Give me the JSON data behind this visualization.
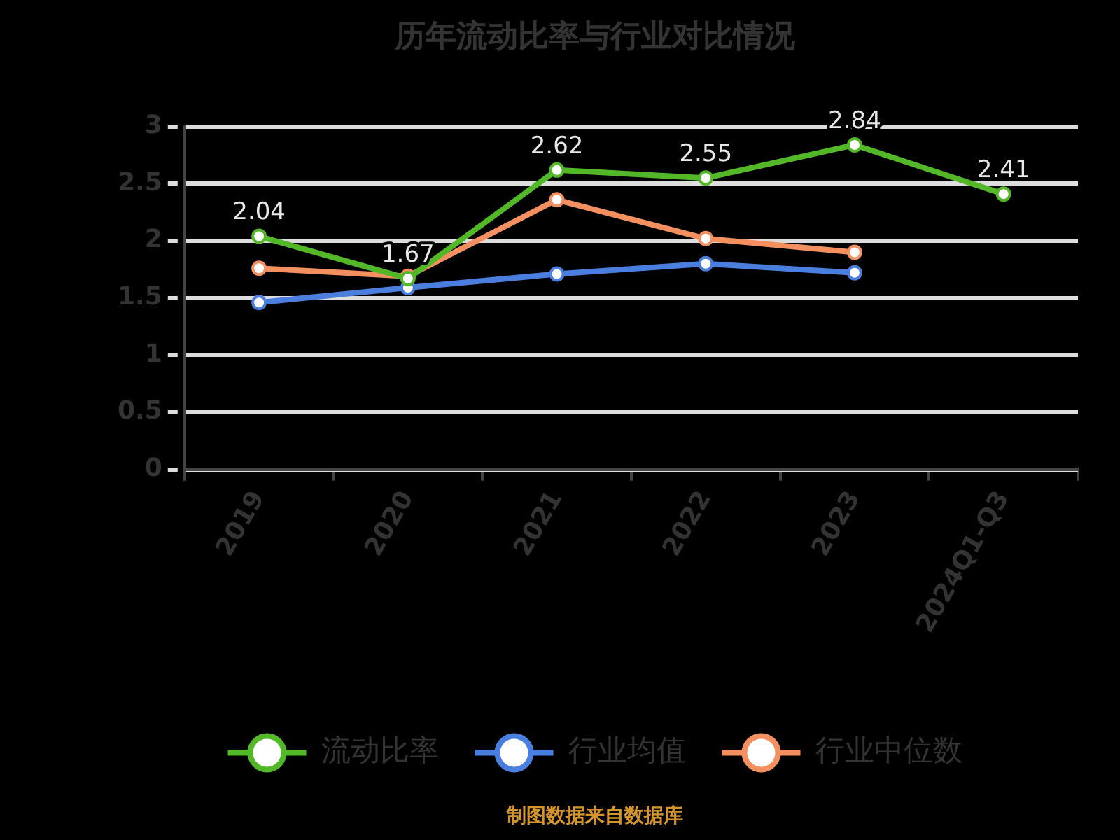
{
  "chart_data": {
    "type": "line",
    "title": "历年流动比率与行业对比情况",
    "categories": [
      "2019",
      "2020",
      "2021",
      "2022",
      "2023",
      "2024Q1-Q3"
    ],
    "series": [
      {
        "name": "流动比率",
        "color": "#52b828",
        "values": [
          2.04,
          1.67,
          2.62,
          2.55,
          2.84,
          2.41
        ],
        "value_labels": [
          "2.04",
          "1.67",
          "2.62",
          "2.55",
          "2.84",
          "2.41"
        ]
      },
      {
        "name": "行业均值",
        "color": "#4a7fe0",
        "values": [
          1.46,
          1.59,
          1.71,
          1.8,
          1.72,
          null
        ]
      },
      {
        "name": "行业中位数",
        "color": "#f49060",
        "values": [
          1.76,
          1.69,
          2.36,
          2.02,
          1.9,
          null
        ]
      }
    ],
    "ylim": [
      0,
      3
    ],
    "yticks": [
      0,
      0.5,
      1,
      1.5,
      2,
      2.5,
      3
    ],
    "grid": "y",
    "legend": "bottom",
    "marker": "circle",
    "annotations": [
      "制图数据来自数据库"
    ]
  }
}
